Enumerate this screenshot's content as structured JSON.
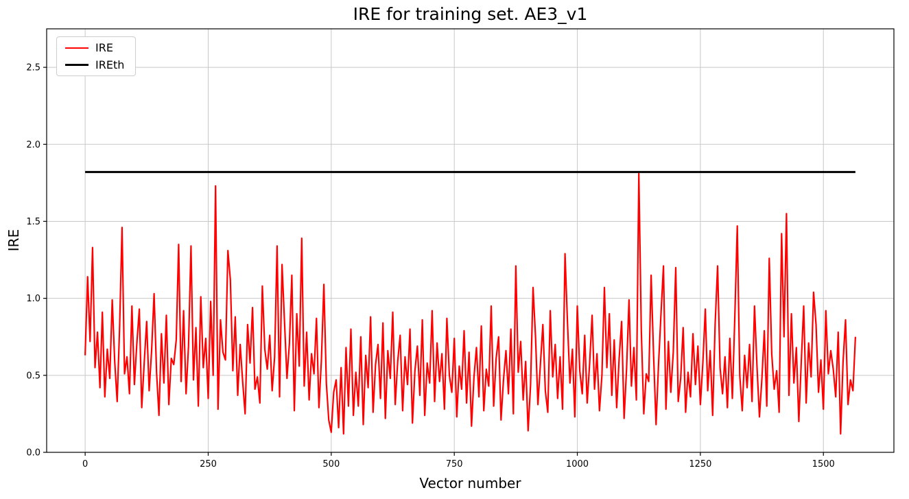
{
  "figure": {
    "background": "#ffffff"
  },
  "chart_data": {
    "type": "line",
    "title": "IRE for training set. AE3_v1",
    "xlabel": "Vector number",
    "ylabel": "IRE",
    "xlim": [
      -78.25,
      1643.25
    ],
    "ylim": [
      0,
      2.75
    ],
    "x_ticks": [
      0,
      250,
      500,
      750,
      1000,
      1250,
      1500
    ],
    "y_ticks": [
      0.0,
      0.5,
      1.0,
      1.5,
      2.0,
      2.5
    ],
    "y_tick_labels": [
      "0.0",
      "0.5",
      "1.0",
      "1.5",
      "2.0",
      "2.5"
    ],
    "grid": true,
    "grid_color": "#c8c8c8",
    "spine_color": "#000000",
    "legend_position": "upper-left",
    "series": [
      {
        "name": "IRE",
        "kind": "line",
        "color": "#ff0000",
        "linewidth": 2.2,
        "x_start": 0,
        "x_step": 5,
        "values": [
          0.63,
          1.14,
          0.72,
          1.33,
          0.55,
          0.78,
          0.42,
          0.91,
          0.36,
          0.67,
          0.48,
          0.99,
          0.59,
          0.33,
          0.82,
          1.46,
          0.51,
          0.62,
          0.38,
          0.95,
          0.44,
          0.71,
          0.93,
          0.29,
          0.58,
          0.85,
          0.4,
          0.66,
          1.03,
          0.52,
          0.24,
          0.77,
          0.45,
          0.89,
          0.31,
          0.61,
          0.57,
          0.73,
          1.35,
          0.46,
          0.92,
          0.38,
          0.69,
          1.34,
          0.47,
          0.81,
          0.3,
          1.01,
          0.55,
          0.74,
          0.35,
          0.98,
          0.5,
          1.73,
          0.28,
          0.86,
          0.65,
          0.6,
          1.31,
          1.12,
          0.53,
          0.88,
          0.37,
          0.7,
          0.46,
          0.25,
          0.83,
          0.58,
          0.94,
          0.41,
          0.49,
          0.32,
          1.08,
          0.67,
          0.54,
          0.76,
          0.4,
          0.62,
          1.34,
          0.36,
          1.22,
          0.85,
          0.48,
          0.71,
          1.15,
          0.27,
          0.9,
          0.56,
          1.39,
          0.43,
          0.78,
          0.34,
          0.64,
          0.51,
          0.87,
          0.29,
          0.6,
          1.09,
          0.45,
          0.21,
          0.13,
          0.39,
          0.47,
          0.16,
          0.55,
          0.12,
          0.68,
          0.3,
          0.8,
          0.24,
          0.52,
          0.3,
          0.75,
          0.18,
          0.63,
          0.42,
          0.88,
          0.26,
          0.57,
          0.7,
          0.35,
          0.84,
          0.22,
          0.66,
          0.48,
          0.91,
          0.31,
          0.59,
          0.76,
          0.27,
          0.62,
          0.44,
          0.8,
          0.19,
          0.53,
          0.69,
          0.37,
          0.86,
          0.24,
          0.58,
          0.45,
          0.92,
          0.33,
          0.71,
          0.46,
          0.64,
          0.28,
          0.87,
          0.5,
          0.39,
          0.74,
          0.23,
          0.56,
          0.41,
          0.79,
          0.32,
          0.65,
          0.17,
          0.49,
          0.68,
          0.36,
          0.82,
          0.27,
          0.54,
          0.43,
          0.95,
          0.3,
          0.61,
          0.75,
          0.21,
          0.47,
          0.66,
          0.38,
          0.8,
          0.25,
          1.21,
          0.52,
          0.72,
          0.34,
          0.59,
          0.14,
          0.44,
          1.07,
          0.75,
          0.31,
          0.57,
          0.83,
          0.4,
          0.26,
          0.92,
          0.49,
          0.7,
          0.35,
          0.62,
          0.28,
          1.29,
          0.84,
          0.45,
          0.67,
          0.23,
          0.95,
          0.53,
          0.38,
          0.76,
          0.32,
          0.58,
          0.89,
          0.41,
          0.64,
          0.27,
          0.5,
          1.07,
          0.55,
          0.9,
          0.37,
          0.73,
          0.29,
          0.61,
          0.85,
          0.22,
          0.54,
          0.99,
          0.43,
          0.68,
          0.34,
          1.81,
          0.79,
          0.25,
          0.51,
          0.46,
          1.15,
          0.63,
          0.18,
          0.57,
          0.9,
          1.21,
          0.28,
          0.72,
          0.39,
          0.65,
          1.2,
          0.33,
          0.48,
          0.81,
          0.26,
          0.52,
          0.36,
          0.77,
          0.44,
          0.69,
          0.31,
          0.58,
          0.93,
          0.4,
          0.66,
          0.24,
          0.83,
          1.21,
          0.55,
          0.38,
          0.62,
          0.29,
          0.74,
          0.35,
          0.88,
          1.47,
          0.5,
          0.27,
          0.63,
          0.42,
          0.7,
          0.33,
          0.95,
          0.56,
          0.23,
          0.48,
          0.79,
          0.3,
          1.26,
          0.64,
          0.41,
          0.53,
          0.26,
          1.42,
          0.75,
          1.55,
          0.37,
          0.9,
          0.45,
          0.68,
          0.2,
          0.58,
          0.95,
          0.32,
          0.71,
          0.49,
          1.04,
          0.83,
          0.39,
          0.6,
          0.28,
          0.92,
          0.51,
          0.66,
          0.54,
          0.36,
          0.78,
          0.12,
          0.59,
          0.86,
          0.31,
          0.47,
          0.4,
          0.75
        ]
      },
      {
        "name": "IREth",
        "kind": "hline",
        "color": "#000000",
        "linewidth": 3,
        "y": 1.82,
        "x_range": [
          0,
          1565
        ]
      }
    ]
  }
}
